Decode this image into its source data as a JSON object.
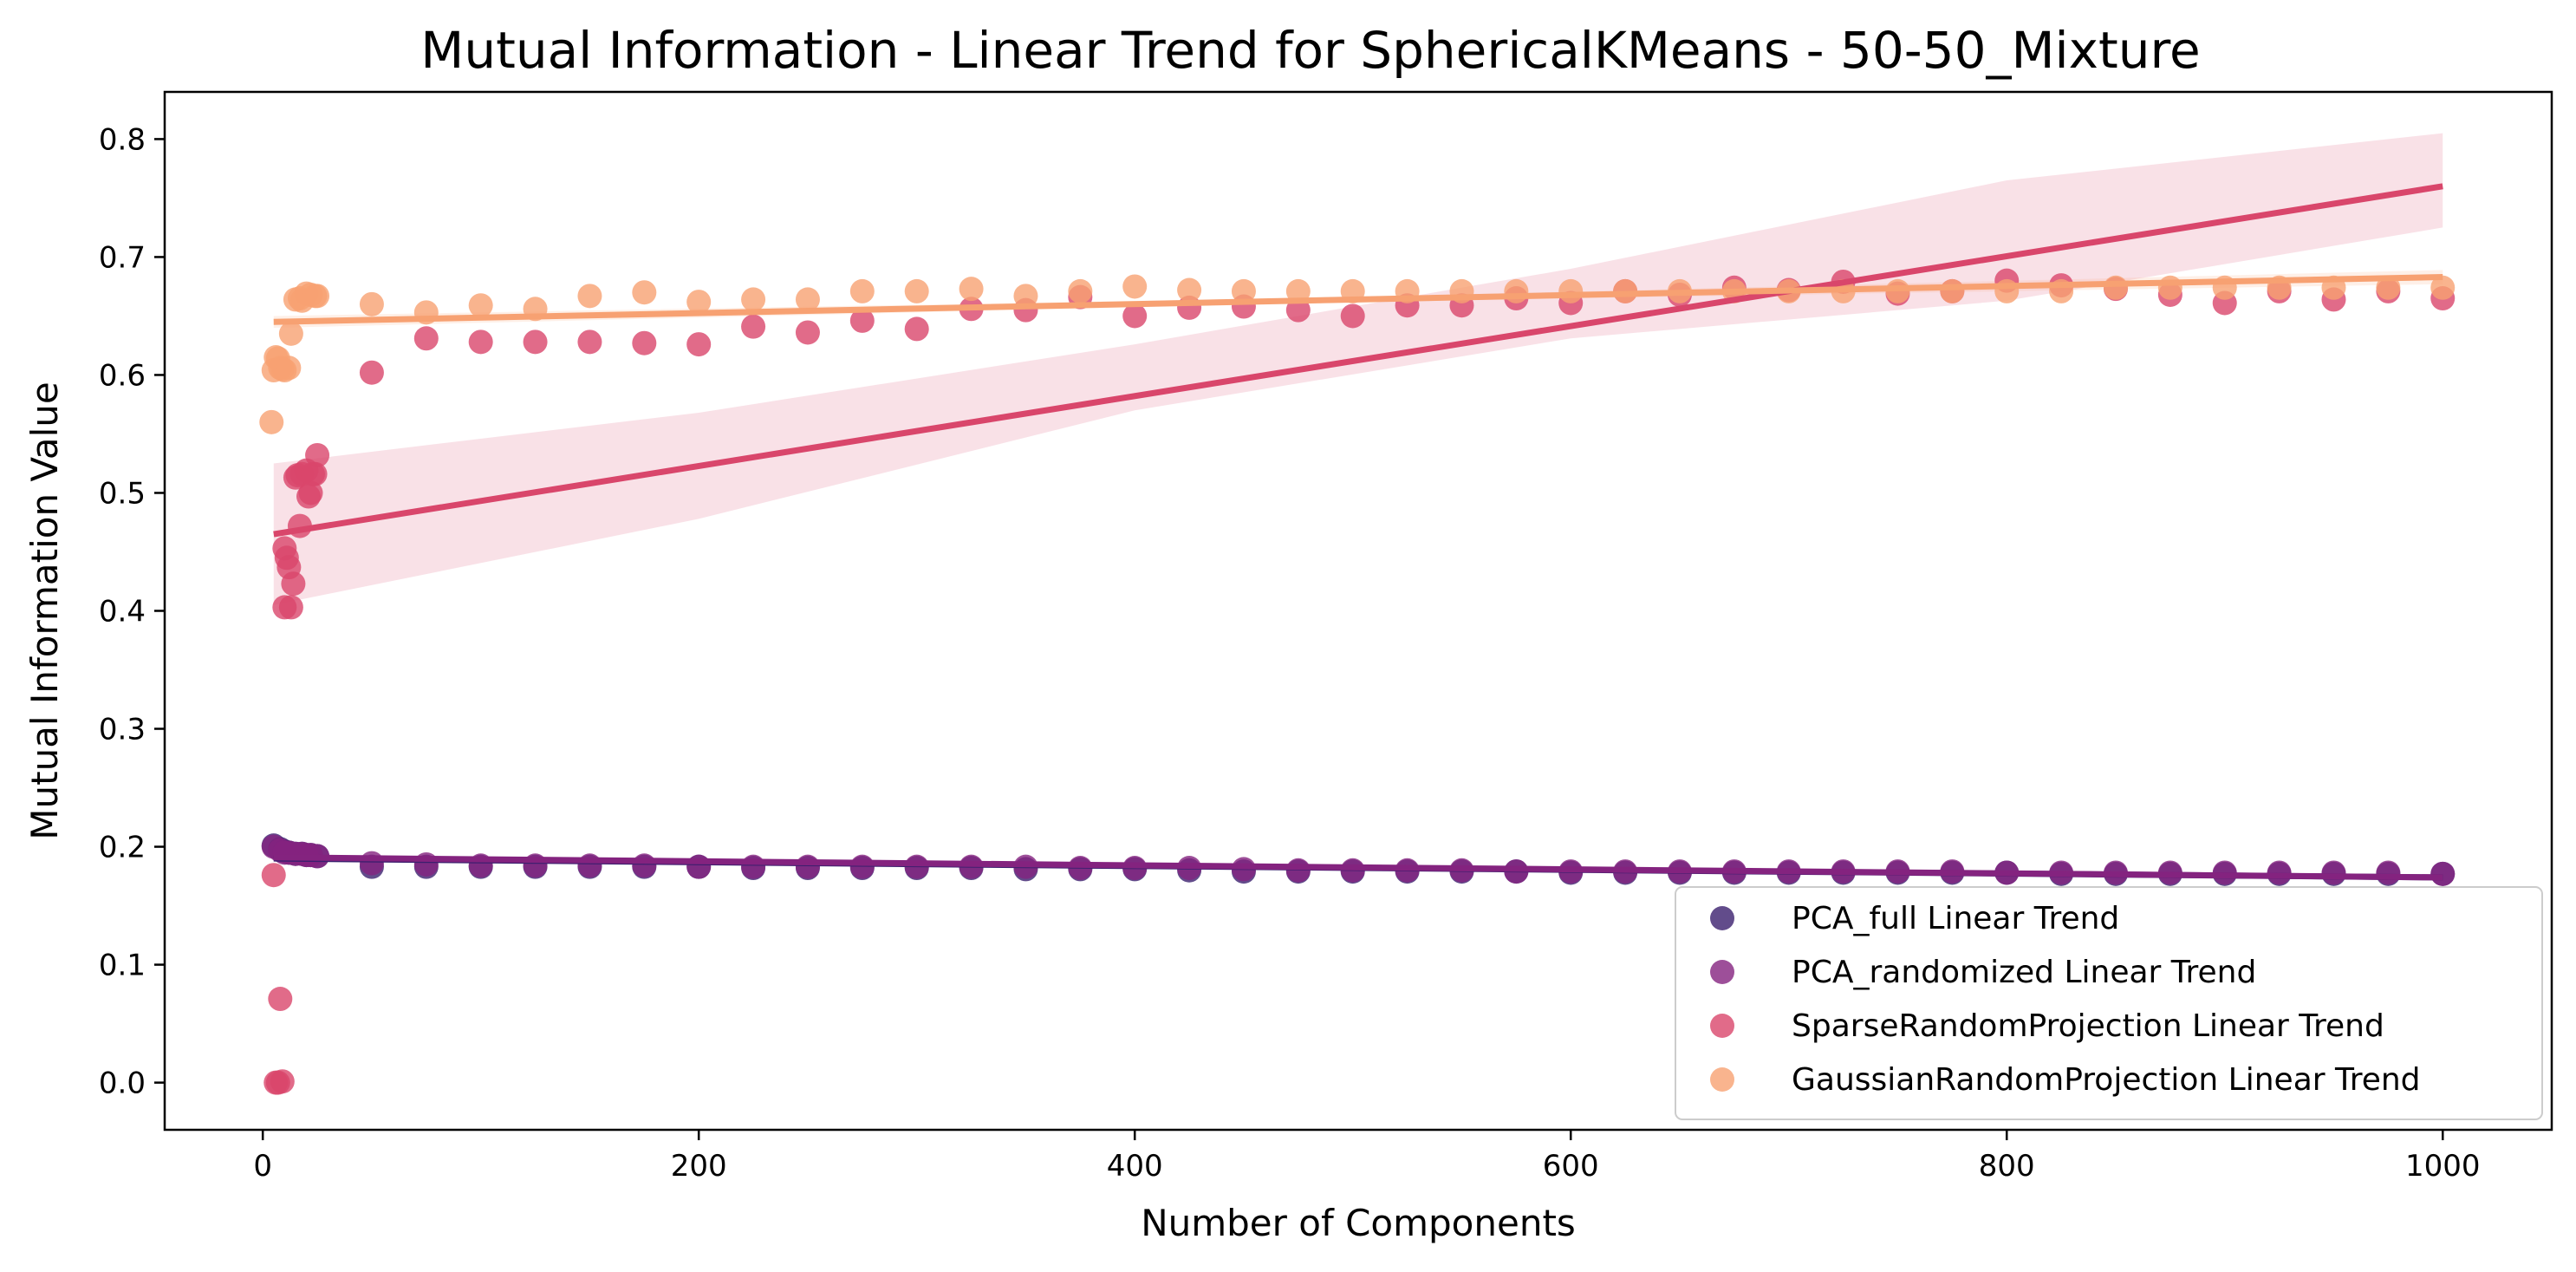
{
  "chart_data": {
    "type": "scatter",
    "title": "Mutual Information - Linear Trend for SphericalKMeans - 50-50_Mixture",
    "xlabel": "Number of Components",
    "ylabel": "Mutual Information Value",
    "xlim": [
      -45,
      1050
    ],
    "ylim": [
      -0.04,
      0.84
    ],
    "xticks": [
      0,
      200,
      400,
      600,
      800,
      1000
    ],
    "yticks": [
      0.0,
      0.1,
      0.2,
      0.3,
      0.4,
      0.5,
      0.6,
      0.7,
      0.8
    ],
    "xtick_labels": [
      "0",
      "200",
      "400",
      "600",
      "800",
      "1000"
    ],
    "ytick_labels": [
      "0.0",
      "0.1",
      "0.2",
      "0.3",
      "0.4",
      "0.5",
      "0.6",
      "0.7",
      "0.8"
    ],
    "legend_position": "lower-right",
    "series": [
      {
        "name": "PCA_full Linear Trend",
        "color": "#3b1f6e",
        "points": [
          [
            5,
            0.201
          ],
          [
            8,
            0.198
          ],
          [
            10,
            0.196
          ],
          [
            12,
            0.195
          ],
          [
            15,
            0.194
          ],
          [
            18,
            0.194
          ],
          [
            20,
            0.193
          ],
          [
            22,
            0.193
          ],
          [
            25,
            0.192
          ],
          [
            50,
            0.183
          ],
          [
            75,
            0.183
          ],
          [
            100,
            0.183
          ],
          [
            125,
            0.183
          ],
          [
            150,
            0.183
          ],
          [
            175,
            0.183
          ],
          [
            200,
            0.183
          ],
          [
            225,
            0.182
          ],
          [
            250,
            0.182
          ],
          [
            275,
            0.182
          ],
          [
            300,
            0.182
          ],
          [
            325,
            0.182
          ],
          [
            350,
            0.181
          ],
          [
            375,
            0.181
          ],
          [
            400,
            0.181
          ],
          [
            425,
            0.18
          ],
          [
            450,
            0.179
          ],
          [
            475,
            0.179
          ],
          [
            500,
            0.179
          ],
          [
            525,
            0.179
          ],
          [
            550,
            0.179
          ],
          [
            575,
            0.179
          ],
          [
            600,
            0.178
          ],
          [
            625,
            0.178
          ],
          [
            650,
            0.178
          ],
          [
            675,
            0.178
          ],
          [
            700,
            0.178
          ],
          [
            725,
            0.178
          ],
          [
            750,
            0.178
          ],
          [
            775,
            0.178
          ],
          [
            800,
            0.178
          ],
          [
            825,
            0.177
          ],
          [
            850,
            0.177
          ],
          [
            875,
            0.177
          ],
          [
            900,
            0.177
          ],
          [
            925,
            0.177
          ],
          [
            950,
            0.177
          ],
          [
            975,
            0.177
          ],
          [
            1000,
            0.177
          ]
        ],
        "trend": [
          [
            5,
            0.19
          ],
          [
            1000,
            0.174
          ]
        ],
        "band": null
      },
      {
        "name": "PCA_randomized Linear Trend",
        "color": "#84237f",
        "points": [
          [
            5,
            0.2
          ],
          [
            8,
            0.197
          ],
          [
            10,
            0.195
          ],
          [
            12,
            0.195
          ],
          [
            15,
            0.194
          ],
          [
            18,
            0.194
          ],
          [
            20,
            0.193
          ],
          [
            22,
            0.193
          ],
          [
            25,
            0.192
          ],
          [
            50,
            0.186
          ],
          [
            75,
            0.185
          ],
          [
            100,
            0.184
          ],
          [
            125,
            0.184
          ],
          [
            150,
            0.184
          ],
          [
            175,
            0.184
          ],
          [
            200,
            0.183
          ],
          [
            225,
            0.183
          ],
          [
            250,
            0.183
          ],
          [
            275,
            0.183
          ],
          [
            300,
            0.183
          ],
          [
            325,
            0.183
          ],
          [
            350,
            0.183
          ],
          [
            375,
            0.182
          ],
          [
            400,
            0.182
          ],
          [
            425,
            0.182
          ],
          [
            450,
            0.181
          ],
          [
            475,
            0.18
          ],
          [
            500,
            0.18
          ],
          [
            525,
            0.18
          ],
          [
            550,
            0.18
          ],
          [
            575,
            0.179
          ],
          [
            600,
            0.179
          ],
          [
            625,
            0.179
          ],
          [
            650,
            0.179
          ],
          [
            675,
            0.179
          ],
          [
            700,
            0.179
          ],
          [
            725,
            0.179
          ],
          [
            750,
            0.179
          ],
          [
            775,
            0.179
          ],
          [
            800,
            0.178
          ],
          [
            825,
            0.178
          ],
          [
            850,
            0.178
          ],
          [
            875,
            0.178
          ],
          [
            900,
            0.178
          ],
          [
            925,
            0.178
          ],
          [
            950,
            0.178
          ],
          [
            975,
            0.178
          ],
          [
            1000,
            0.177
          ]
        ],
        "trend": [
          [
            5,
            0.191
          ],
          [
            1000,
            0.174
          ]
        ],
        "band": null
      },
      {
        "name": "SparseRandomProjection Linear Trend",
        "color": "#d9466b",
        "points": [
          [
            5,
            0.176
          ],
          [
            6,
            0.0
          ],
          [
            7,
            0.0
          ],
          [
            8,
            0.071
          ],
          [
            9,
            0.001
          ],
          [
            10,
            0.403
          ],
          [
            10,
            0.453
          ],
          [
            11,
            0.445
          ],
          [
            12,
            0.437
          ],
          [
            13,
            0.403
          ],
          [
            14,
            0.423
          ],
          [
            15,
            0.513
          ],
          [
            16,
            0.515
          ],
          [
            17,
            0.472
          ],
          [
            18,
            0.516
          ],
          [
            20,
            0.519
          ],
          [
            21,
            0.497
          ],
          [
            22,
            0.5
          ],
          [
            23,
            0.516
          ],
          [
            24,
            0.516
          ],
          [
            25,
            0.532
          ],
          [
            50,
            0.602
          ],
          [
            75,
            0.631
          ],
          [
            100,
            0.628
          ],
          [
            125,
            0.628
          ],
          [
            150,
            0.628
          ],
          [
            175,
            0.627
          ],
          [
            200,
            0.626
          ],
          [
            225,
            0.641
          ],
          [
            250,
            0.636
          ],
          [
            275,
            0.646
          ],
          [
            300,
            0.639
          ],
          [
            325,
            0.656
          ],
          [
            350,
            0.655
          ],
          [
            375,
            0.666
          ],
          [
            400,
            0.65
          ],
          [
            425,
            0.657
          ],
          [
            450,
            0.658
          ],
          [
            475,
            0.655
          ],
          [
            500,
            0.65
          ],
          [
            525,
            0.659
          ],
          [
            550,
            0.659
          ],
          [
            575,
            0.665
          ],
          [
            600,
            0.661
          ],
          [
            625,
            0.671
          ],
          [
            650,
            0.668
          ],
          [
            675,
            0.674
          ],
          [
            700,
            0.672
          ],
          [
            725,
            0.679
          ],
          [
            750,
            0.669
          ],
          [
            775,
            0.671
          ],
          [
            800,
            0.68
          ],
          [
            825,
            0.676
          ],
          [
            850,
            0.673
          ],
          [
            875,
            0.668
          ],
          [
            900,
            0.661
          ],
          [
            925,
            0.671
          ],
          [
            950,
            0.664
          ],
          [
            975,
            0.671
          ],
          [
            1000,
            0.665
          ]
        ],
        "trend": [
          [
            5,
            0.465
          ],
          [
            1000,
            0.76
          ]
        ],
        "band": [
          [
            5,
            0.405,
            0.525
          ],
          [
            200,
            0.478,
            0.568
          ],
          [
            400,
            0.57,
            0.626
          ],
          [
            600,
            0.631,
            0.69
          ],
          [
            800,
            0.663,
            0.765
          ],
          [
            1000,
            0.725,
            0.805
          ]
        ]
      },
      {
        "name": "GaussianRandomProjection Linear Trend",
        "color": "#f7a172",
        "points": [
          [
            4,
            0.56
          ],
          [
            5,
            0.604
          ],
          [
            6,
            0.615
          ],
          [
            7,
            0.614
          ],
          [
            8,
            0.606
          ],
          [
            9,
            0.605
          ],
          [
            10,
            0.604
          ],
          [
            12,
            0.606
          ],
          [
            13,
            0.635
          ],
          [
            15,
            0.664
          ],
          [
            17,
            0.665
          ],
          [
            18,
            0.663
          ],
          [
            20,
            0.669
          ],
          [
            22,
            0.668
          ],
          [
            24,
            0.667
          ],
          [
            25,
            0.667
          ],
          [
            50,
            0.66
          ],
          [
            75,
            0.653
          ],
          [
            100,
            0.659
          ],
          [
            125,
            0.656
          ],
          [
            150,
            0.667
          ],
          [
            175,
            0.67
          ],
          [
            200,
            0.662
          ],
          [
            225,
            0.664
          ],
          [
            250,
            0.664
          ],
          [
            275,
            0.671
          ],
          [
            300,
            0.671
          ],
          [
            325,
            0.673
          ],
          [
            350,
            0.667
          ],
          [
            375,
            0.671
          ],
          [
            400,
            0.675
          ],
          [
            425,
            0.672
          ],
          [
            450,
            0.671
          ],
          [
            475,
            0.671
          ],
          [
            500,
            0.671
          ],
          [
            525,
            0.671
          ],
          [
            550,
            0.671
          ],
          [
            575,
            0.671
          ],
          [
            600,
            0.671
          ],
          [
            625,
            0.671
          ],
          [
            650,
            0.671
          ],
          [
            675,
            0.671
          ],
          [
            700,
            0.671
          ],
          [
            725,
            0.671
          ],
          [
            750,
            0.671
          ],
          [
            775,
            0.671
          ],
          [
            800,
            0.671
          ],
          [
            825,
            0.671
          ],
          [
            850,
            0.674
          ],
          [
            875,
            0.674
          ],
          [
            900,
            0.674
          ],
          [
            925,
            0.674
          ],
          [
            950,
            0.674
          ],
          [
            975,
            0.674
          ],
          [
            1000,
            0.674
          ]
        ],
        "trend": [
          [
            5,
            0.645
          ],
          [
            1000,
            0.683
          ]
        ],
        "band": [
          [
            5,
            0.64,
            0.65
          ],
          [
            500,
            0.662,
            0.666
          ],
          [
            1000,
            0.677,
            0.689
          ]
        ]
      }
    ]
  }
}
